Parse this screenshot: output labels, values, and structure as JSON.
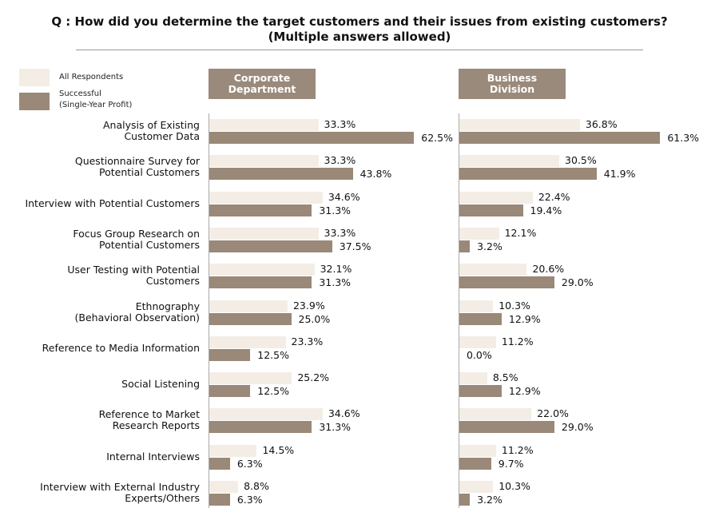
{
  "chart_data": {
    "type": "bar",
    "orientation": "horizontal",
    "title": "Q : How did you determine the target customers and their issues from existing customers?",
    "subtitle": "(Multiple answers allowed)",
    "legend": {
      "placement": "top-left",
      "entries": [
        "All Respondents",
        "Successful\n(Single-Year Profit)"
      ]
    },
    "colors": {
      "all": "#f3ede5",
      "successful": "#9a8878",
      "header": "#9a8a7b"
    },
    "categories": [
      "Analysis of Existing\nCustomer Data",
      "Questionnaire Survey for\nPotential Customers",
      "Interview with Potential Customers",
      "Focus Group Research on\nPotential Customers",
      "User Testing with Potential\nCustomers",
      "Ethnography\n(Behavioral Observation)",
      "Reference to Media Information",
      "Social Listening",
      "Reference to Market\nResearch Reports",
      "Internal Interviews",
      "Interview with External Industry\nExperts/Others"
    ],
    "panels": [
      {
        "title": "Corporate\nDepartment",
        "series": [
          {
            "name": "All Respondents",
            "values": [
              33.3,
              33.3,
              34.6,
              33.3,
              32.1,
              23.9,
              23.3,
              25.2,
              34.6,
              14.5,
              8.8
            ]
          },
          {
            "name": "Successful (Single-Year Profit)",
            "values": [
              62.5,
              43.8,
              31.3,
              37.5,
              31.3,
              25.0,
              12.5,
              12.5,
              31.3,
              6.3,
              6.3
            ]
          }
        ]
      },
      {
        "title": "Business\nDivision",
        "series": [
          {
            "name": "All Respondents",
            "values": [
              36.8,
              30.5,
              22.4,
              12.1,
              20.6,
              10.3,
              11.2,
              8.5,
              22.0,
              11.2,
              10.3
            ]
          },
          {
            "name": "Successful (Single-Year Profit)",
            "values": [
              61.3,
              41.9,
              19.4,
              3.2,
              29.0,
              12.9,
              0.0,
              12.9,
              29.0,
              9.7,
              3.2
            ]
          }
        ]
      }
    ],
    "unit": "%",
    "grid": false
  }
}
